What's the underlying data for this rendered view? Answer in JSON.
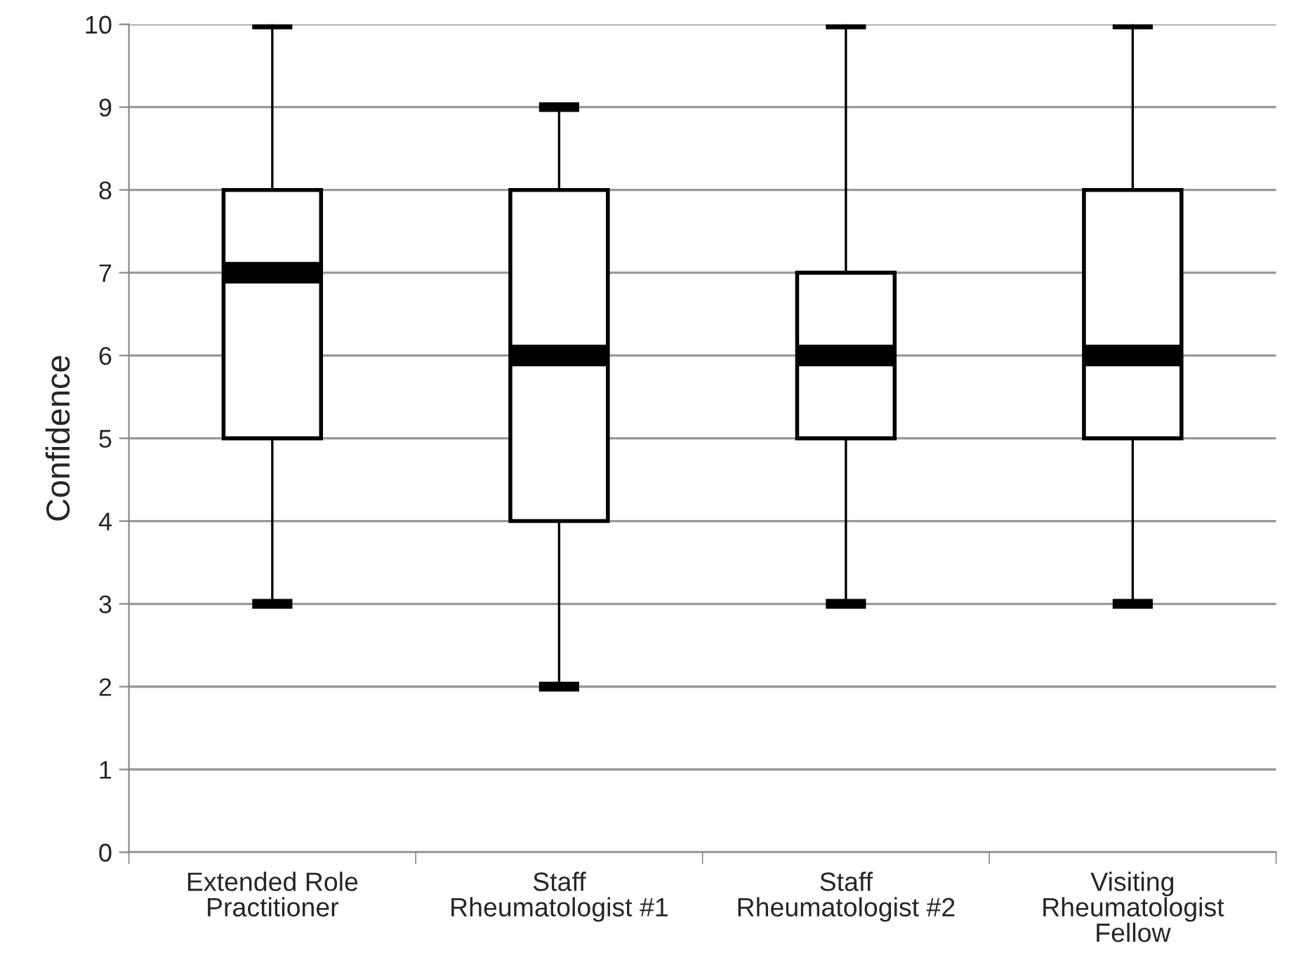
{
  "chart_data": {
    "type": "box",
    "ylabel": "Confidence",
    "categories": [
      "Extended Role\nPractitioner",
      "Staff\nRheumatologist #1",
      "Staff\nRheumatologist #2",
      "Visiting\nRheumatologist\nFellow"
    ],
    "boxes": [
      {
        "low": 3,
        "q1": 5,
        "median": 7,
        "q3": 8,
        "high": 10
      },
      {
        "low": 2,
        "q1": 4,
        "median": 6,
        "q3": 8,
        "high": 9
      },
      {
        "low": 3,
        "q1": 5,
        "median": 6,
        "q3": 7,
        "high": 10
      },
      {
        "low": 3,
        "q1": 5,
        "median": 6,
        "q3": 8,
        "high": 10
      }
    ],
    "color": "#ffffff",
    "ylim": [
      0,
      10
    ],
    "yticks": [
      0,
      1,
      2,
      3,
      4,
      5,
      6,
      7,
      8,
      9,
      10
    ],
    "grid": "y"
  }
}
